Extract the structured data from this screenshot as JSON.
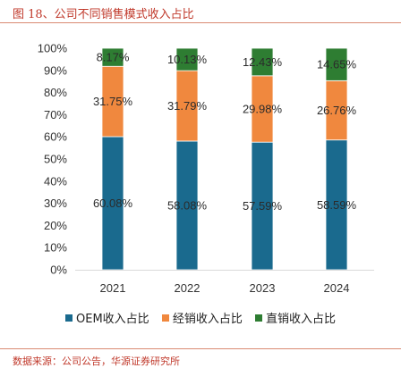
{
  "header": {
    "figure_title": "图 18、公司不同销售模式收入占比"
  },
  "footer": {
    "source": "数据来源：公司公告，华源证券研究所"
  },
  "chart_data": {
    "type": "bar",
    "stacked": true,
    "categories": [
      "2021",
      "2022",
      "2023",
      "2024"
    ],
    "series": [
      {
        "name": "OEM收入占比",
        "color": "#1a6a8e",
        "values": [
          60.08,
          58.08,
          57.59,
          58.59
        ],
        "labels": [
          "60.08%",
          "58.08%",
          "57.59%",
          "58.59%"
        ]
      },
      {
        "name": "经销收入占比",
        "color": "#f0883e",
        "values": [
          31.75,
          31.79,
          29.98,
          26.76
        ],
        "labels": [
          "31.75%",
          "31.79%",
          "29.98%",
          "26.76%"
        ]
      },
      {
        "name": "直销收入占比",
        "color": "#2e7d32",
        "values": [
          8.17,
          10.13,
          12.43,
          14.65
        ],
        "labels": [
          "8.17%",
          "10.13%",
          "12.43%",
          "14.65%"
        ]
      }
    ],
    "ylim": [
      0,
      100
    ],
    "yticks": [
      "0%",
      "10%",
      "20%",
      "30%",
      "40%",
      "50%",
      "60%",
      "70%",
      "80%",
      "90%",
      "100%"
    ],
    "grid": false,
    "legend_position": "bottom"
  }
}
